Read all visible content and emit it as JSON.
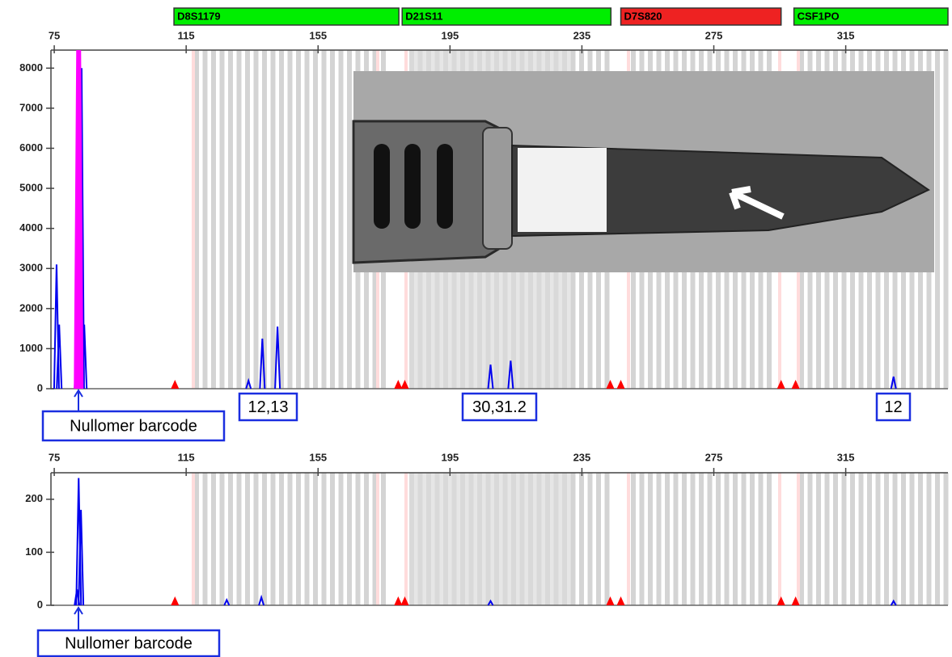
{
  "chart_data": [
    {
      "type": "spike",
      "xlim": [
        74,
        346
      ],
      "xticks": [
        75,
        115,
        155,
        195,
        235,
        275,
        315
      ],
      "ylim": [
        0,
        8450
      ],
      "yticks": [
        0,
        1000,
        2000,
        3000,
        4000,
        5000,
        6000,
        7000,
        8000
      ],
      "markers": [
        {
          "name": "D8S1179",
          "color": "#00ee00",
          "range": [
            111.3,
            179.5
          ]
        },
        {
          "name": "D21S11",
          "color": "#00ee00",
          "range": [
            180.5,
            243.8
          ]
        },
        {
          "name": "D7S820",
          "color": "#ee2222",
          "range": [
            246.8,
            295.4
          ]
        },
        {
          "name": "CSF1PO",
          "color": "#00ee00",
          "range": [
            299.3,
            346
          ]
        }
      ],
      "series": [
        {
          "color": "#0000ee",
          "x": [
            75.7,
            76.5,
            81.9,
            82.6,
            83.3,
            84.1,
            133.9,
            138.1,
            142.7,
            207.3,
            213.4,
            329.5
          ],
          "values": [
            3100,
            1600,
            1400,
            8400,
            8000,
            1600,
            200,
            1250,
            1550,
            600,
            700,
            300
          ]
        },
        {
          "color": "#ff00ff",
          "x": [
            82.4
          ],
          "values": [
            8450
          ]
        }
      ],
      "standard": {
        "color": "#ff0000",
        "x": [
          111.6,
          179.3,
          181.3,
          243.6,
          246.8,
          295.4,
          299.8
        ]
      },
      "annotations": [
        "12,13",
        "30,31.2",
        "12",
        "Nullomer barcode"
      ]
    },
    {
      "type": "spike",
      "xlim": [
        74,
        346
      ],
      "xticks": [
        75,
        115,
        155,
        195,
        235,
        275,
        315
      ],
      "ylim": [
        0,
        250
      ],
      "yticks": [
        0,
        100,
        200
      ],
      "series": [
        {
          "color": "#0000ee",
          "x": [
            81.9,
            82.4,
            83.1,
            127.3,
            137.8,
            207.3,
            329.5
          ],
          "values": [
            30,
            240,
            180,
            10,
            15,
            8,
            8
          ]
        }
      ],
      "standard": {
        "color": "#ff0000",
        "x": [
          111.6,
          179.3,
          181.3,
          243.6,
          246.8,
          295.4,
          299.8
        ]
      },
      "annotations": [
        "Nullomer barcode"
      ]
    }
  ]
}
